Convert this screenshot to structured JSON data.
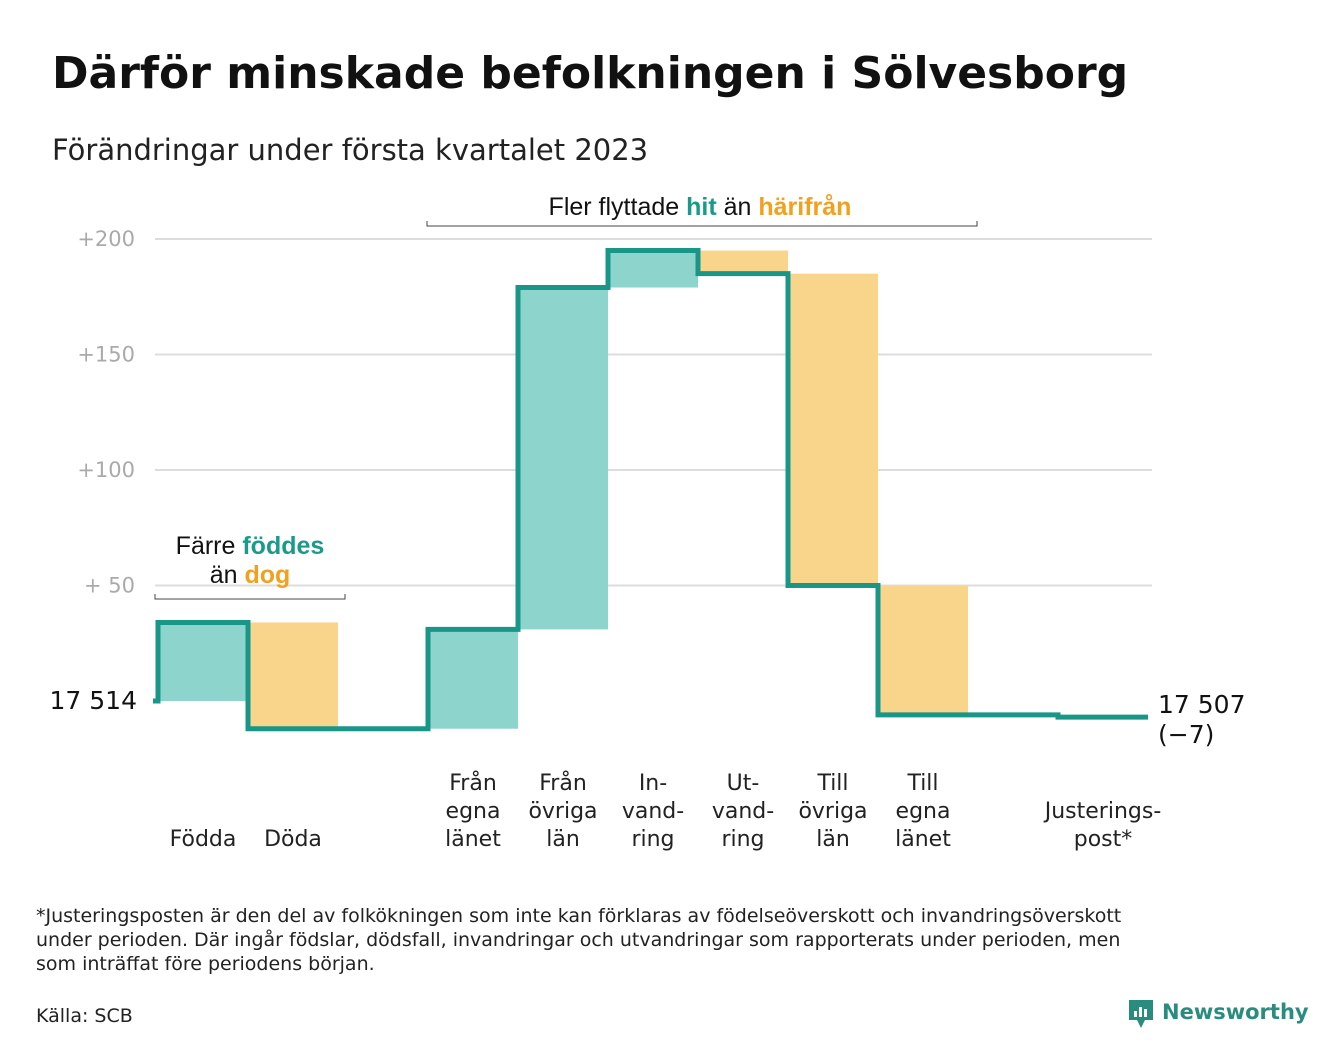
{
  "title": "Därför minskade befolkningen i Sölvesborg",
  "subtitle": "Förändringar under första kvartalet 2023",
  "colors": {
    "line": "#1a9688",
    "increase": "#8dd5cc",
    "decrease": "#f9d48b",
    "teal_text": "#1a9a88",
    "orange_text": "#f2a11f",
    "grid": "#dddddd"
  },
  "chart_data": {
    "type": "waterfall",
    "start_value": 17514,
    "start_label": "17 514",
    "end_label": "17 507",
    "end_change_label": "(−7)",
    "ylim": [
      -20,
      205
    ],
    "yticks": [
      {
        "v": 50,
        "label": "+ 50"
      },
      {
        "v": 100,
        "label": "+100"
      },
      {
        "v": 150,
        "label": "+150"
      },
      {
        "v": 200,
        "label": "+200"
      }
    ],
    "grid": true,
    "steps": [
      {
        "label": [
          "Födda"
        ],
        "value": 34,
        "slot": 0
      },
      {
        "label": [
          "Döda"
        ],
        "value": -46,
        "slot": 1
      },
      {
        "label": [
          "Från",
          "egna",
          "länet"
        ],
        "value": 43,
        "slot": 3
      },
      {
        "label": [
          "Från",
          "övriga",
          "län"
        ],
        "value": 148,
        "slot": 4
      },
      {
        "label": [
          "In-",
          "vand-",
          "ring"
        ],
        "value": 16,
        "slot": 5
      },
      {
        "label": [
          "Ut-",
          "vand-",
          "ring"
        ],
        "value": -10,
        "slot": 6
      },
      {
        "label": [
          "Till",
          "övriga",
          "län"
        ],
        "value": -135,
        "slot": 7
      },
      {
        "label": [
          "Till",
          "egna",
          "länet"
        ],
        "value": -56,
        "slot": 8
      },
      {
        "label": [
          "Justerings-",
          "post*"
        ],
        "value": -1,
        "slot": 10,
        "line_only": true
      }
    ]
  },
  "annotations": {
    "migration": {
      "pre": "Fler flyttade ",
      "hit": "hit",
      "mid": " än ",
      "harifran": "härifrån"
    },
    "births": {
      "pre": "Färre ",
      "foddes": "föddes",
      "mid": "än ",
      "dog": "dog"
    }
  },
  "footnote": [
    "*Justeringsposten är den del av folkökningen som inte kan förklaras av födelseöverskott och invandringsöverskott",
    "under perioden. Där ingår födslar, dödsfall, invandringar och utvandringar som rapporterats under perioden, men",
    "som inträffat före periodens början."
  ],
  "source": "Källa: SCB",
  "brand": "Newsworthy"
}
